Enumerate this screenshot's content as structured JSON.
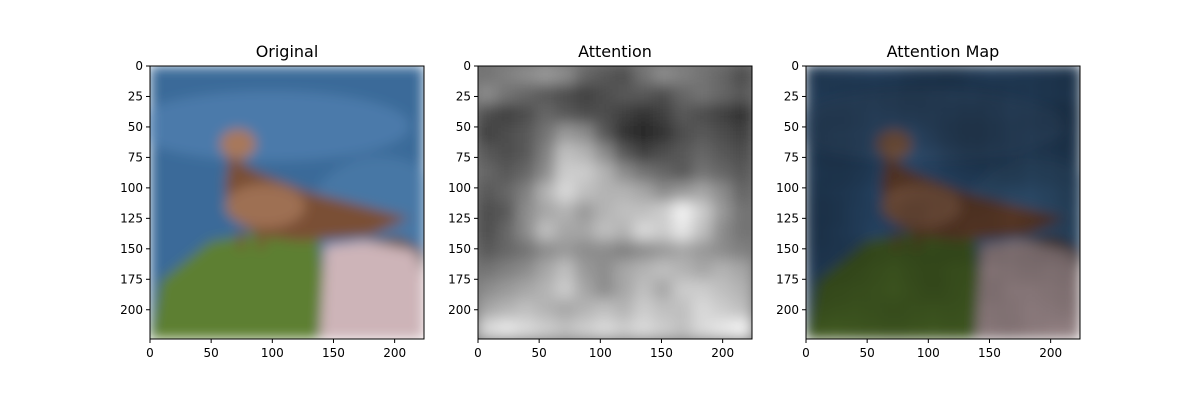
{
  "chart_data": [
    {
      "type": "image",
      "title": "Original",
      "xlim": [
        0,
        224
      ],
      "ylim": [
        224,
        0
      ],
      "xticks": [
        0,
        50,
        100,
        150,
        200
      ],
      "yticks": [
        0,
        25,
        50,
        75,
        100,
        125,
        150,
        175,
        200
      ],
      "xtick_labels": [
        "0",
        "50",
        "100",
        "150",
        "200"
      ],
      "ytick_labels": [
        "0",
        "25",
        "50",
        "75",
        "100",
        "125",
        "150",
        "175",
        "200"
      ],
      "content": "photo of a brown bird perched on a green/pink rock with blue sea behind",
      "palette": {
        "sky": "#3b6a99",
        "sea_light": "#5f8fbe",
        "bird": "#7a4f34",
        "bird_light": "#a8785a",
        "moss": "#5d7f32",
        "rock": "#cdb4b8"
      }
    },
    {
      "type": "heatmap",
      "title": "Attention",
      "colormap": "gray",
      "xlim": [
        0,
        224
      ],
      "ylim": [
        224,
        0
      ],
      "xticks": [
        0,
        50,
        100,
        150,
        200
      ],
      "yticks": [
        0,
        25,
        50,
        75,
        100,
        125,
        150,
        175,
        200
      ],
      "xtick_labels": [
        "0",
        "50",
        "100",
        "150",
        "200"
      ],
      "ytick_labels": [
        "0",
        "25",
        "50",
        "75",
        "100",
        "125",
        "150",
        "175",
        "200"
      ],
      "grid": [
        [
          0.45,
          0.5,
          0.55,
          0.6,
          0.55,
          0.4,
          0.35,
          0.3,
          0.45,
          0.55,
          0.5,
          0.45,
          0.4,
          0.3
        ],
        [
          0.55,
          0.45,
          0.4,
          0.35,
          0.3,
          0.25,
          0.3,
          0.35,
          0.35,
          0.3,
          0.4,
          0.45,
          0.4,
          0.35
        ],
        [
          0.3,
          0.25,
          0.3,
          0.4,
          0.35,
          0.3,
          0.3,
          0.25,
          0.2,
          0.25,
          0.35,
          0.3,
          0.25,
          0.2
        ],
        [
          0.25,
          0.3,
          0.35,
          0.45,
          0.6,
          0.55,
          0.35,
          0.2,
          0.15,
          0.2,
          0.3,
          0.35,
          0.3,
          0.25
        ],
        [
          0.35,
          0.3,
          0.35,
          0.5,
          0.75,
          0.7,
          0.55,
          0.35,
          0.25,
          0.3,
          0.35,
          0.4,
          0.35,
          0.3
        ],
        [
          0.4,
          0.35,
          0.4,
          0.55,
          0.8,
          0.8,
          0.7,
          0.55,
          0.45,
          0.4,
          0.35,
          0.45,
          0.4,
          0.35
        ],
        [
          0.35,
          0.4,
          0.5,
          0.7,
          0.85,
          0.75,
          0.7,
          0.7,
          0.65,
          0.55,
          0.6,
          0.65,
          0.55,
          0.4
        ],
        [
          0.3,
          0.35,
          0.55,
          0.65,
          0.7,
          0.6,
          0.7,
          0.75,
          0.75,
          0.8,
          0.95,
          0.8,
          0.6,
          0.45
        ],
        [
          0.3,
          0.4,
          0.55,
          0.75,
          0.65,
          0.65,
          0.75,
          0.7,
          0.85,
          0.8,
          0.9,
          0.75,
          0.55,
          0.45
        ],
        [
          0.35,
          0.4,
          0.45,
          0.55,
          0.6,
          0.55,
          0.55,
          0.5,
          0.55,
          0.6,
          0.65,
          0.6,
          0.55,
          0.5
        ],
        [
          0.45,
          0.5,
          0.55,
          0.65,
          0.75,
          0.6,
          0.55,
          0.65,
          0.7,
          0.75,
          0.7,
          0.65,
          0.7,
          0.65
        ],
        [
          0.55,
          0.6,
          0.65,
          0.7,
          0.8,
          0.65,
          0.55,
          0.65,
          0.75,
          0.65,
          0.8,
          0.8,
          0.75,
          0.7
        ],
        [
          0.65,
          0.7,
          0.75,
          0.7,
          0.65,
          0.7,
          0.75,
          0.7,
          0.8,
          0.75,
          0.75,
          0.85,
          0.8,
          0.75
        ],
        [
          0.85,
          0.9,
          0.85,
          0.8,
          0.75,
          0.8,
          0.85,
          0.8,
          0.85,
          0.8,
          0.75,
          0.85,
          0.9,
          0.95
        ]
      ]
    },
    {
      "type": "image",
      "title": "Attention Map",
      "xlim": [
        0,
        224
      ],
      "ylim": [
        224,
        0
      ],
      "xticks": [
        0,
        50,
        100,
        150,
        200
      ],
      "yticks": [
        0,
        25,
        50,
        75,
        100,
        125,
        150,
        175,
        200
      ],
      "xtick_labels": [
        "0",
        "50",
        "100",
        "150",
        "200"
      ],
      "ytick_labels": [
        "0",
        "25",
        "50",
        "75",
        "100",
        "125",
        "150",
        "175",
        "200"
      ],
      "content": "original photo modulated (darkened) by the attention grid",
      "modulation": "attention grid from Attention panel"
    }
  ]
}
